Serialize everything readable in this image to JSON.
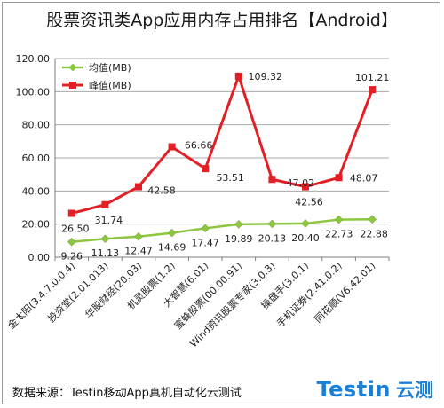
{
  "title": "股票资讯类App应用内存占用排名【Android】",
  "footer": {
    "source": "数据来源：Testin移动App真机自动化云测试",
    "logo_word": "Testin",
    "logo_cn": "云测"
  },
  "chart_data": {
    "type": "line",
    "title": "股票资讯类App应用内存占用排名【Android】",
    "categories": [
      "金太阳(3.4.7.0.0.4)",
      "投资堂(2.01.013)",
      "华股财经(20.03)",
      "机灵股票(1.2)",
      "大智慧(6.01)",
      "蜜蜂股票(00.00.91)",
      "Wind资讯股票专家(3.0.3)",
      "操盘手(3.0.1)",
      "手机证券(2.41.0.2)",
      "同花顺(V6.42.01)"
    ],
    "series": [
      {
        "name": "均值(MB)",
        "color": "#8dc63f",
        "values": [
          9.26,
          11.13,
          12.47,
          14.69,
          17.47,
          19.89,
          20.13,
          20.4,
          22.73,
          22.88
        ],
        "labels": [
          "9.26",
          "11.13",
          "12.47",
          "14.69",
          "17.47",
          "19.89",
          "20.13",
          "20.40",
          "22.73",
          "22.88"
        ]
      },
      {
        "name": "峰值(MB)",
        "color": "#e31e24",
        "values": [
          26.5,
          31.74,
          42.58,
          66.66,
          53.51,
          109.32,
          47.02,
          42.56,
          48.07,
          101.21
        ],
        "labels": [
          "26.50",
          "31.74",
          "42.58",
          "66.66",
          "53.51",
          "109.32",
          "47.02",
          "42.56",
          "48.07",
          "101.21"
        ]
      }
    ],
    "ylim": [
      0,
      120
    ],
    "yticks": [
      "0.00",
      "20.00",
      "40.00",
      "60.00",
      "80.00",
      "100.00",
      "120.00"
    ],
    "grid": true,
    "legend": "top-left"
  }
}
